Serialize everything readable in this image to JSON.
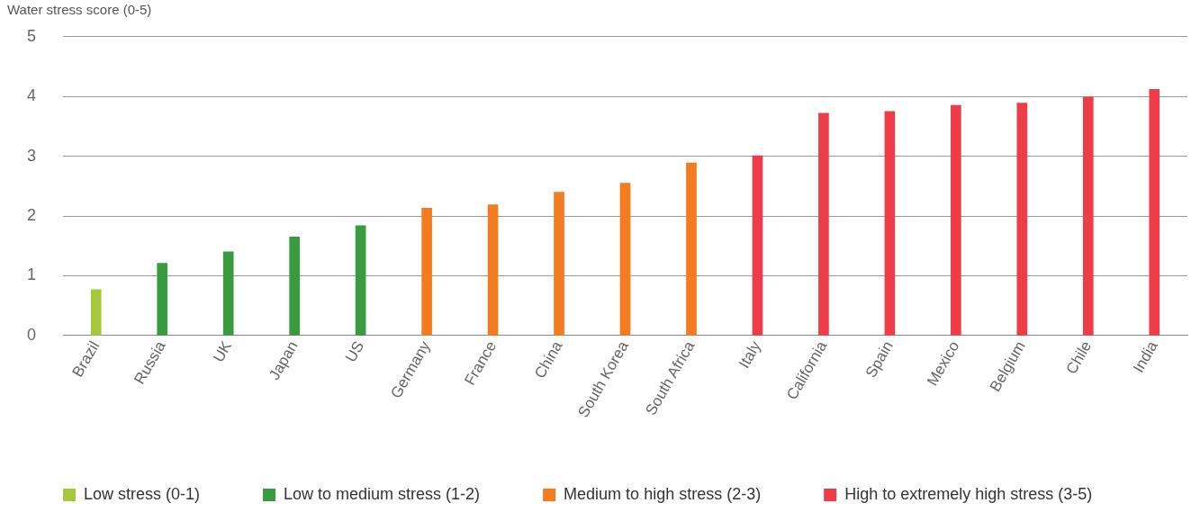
{
  "chart_data": {
    "type": "bar",
    "ylabel": "Water stress score (0-5)",
    "categories": [
      "Brazil",
      "Russia",
      "UK",
      "Japan",
      "US",
      "Germany",
      "France",
      "China",
      "South Korea",
      "South Africa",
      "Italy",
      "California",
      "Spain",
      "Mexico",
      "Belgium",
      "Chile",
      "India"
    ],
    "series": [
      {
        "name": "Low stress (0-1)",
        "color": "#a6c83a",
        "values": [
          0.77,
          null,
          null,
          null,
          null,
          null,
          null,
          null,
          null,
          null,
          null,
          null,
          null,
          null,
          null,
          null,
          null
        ]
      },
      {
        "name": "Low to medium stress (1-2)",
        "color": "#3a9a3f",
        "values": [
          null,
          1.21,
          1.4,
          1.65,
          1.84,
          null,
          null,
          null,
          null,
          null,
          null,
          null,
          null,
          null,
          null,
          null,
          null
        ]
      },
      {
        "name": "Medium to high stress (2-3)",
        "color": "#f47b20",
        "values": [
          null,
          null,
          null,
          null,
          null,
          2.13,
          2.19,
          2.4,
          2.55,
          2.89,
          null,
          null,
          null,
          null,
          null,
          null,
          null
        ]
      },
      {
        "name": "High to extremely high stress (3-5)",
        "color": "#ee3d48",
        "values": [
          null,
          null,
          null,
          null,
          null,
          null,
          null,
          null,
          null,
          null,
          3.01,
          3.72,
          3.75,
          3.85,
          3.89,
          3.99,
          4.12
        ]
      }
    ],
    "ylim": [
      0,
      5
    ],
    "yticks": [
      0,
      1,
      2,
      3,
      4,
      5
    ],
    "grid": "y",
    "legend": "bottom"
  }
}
